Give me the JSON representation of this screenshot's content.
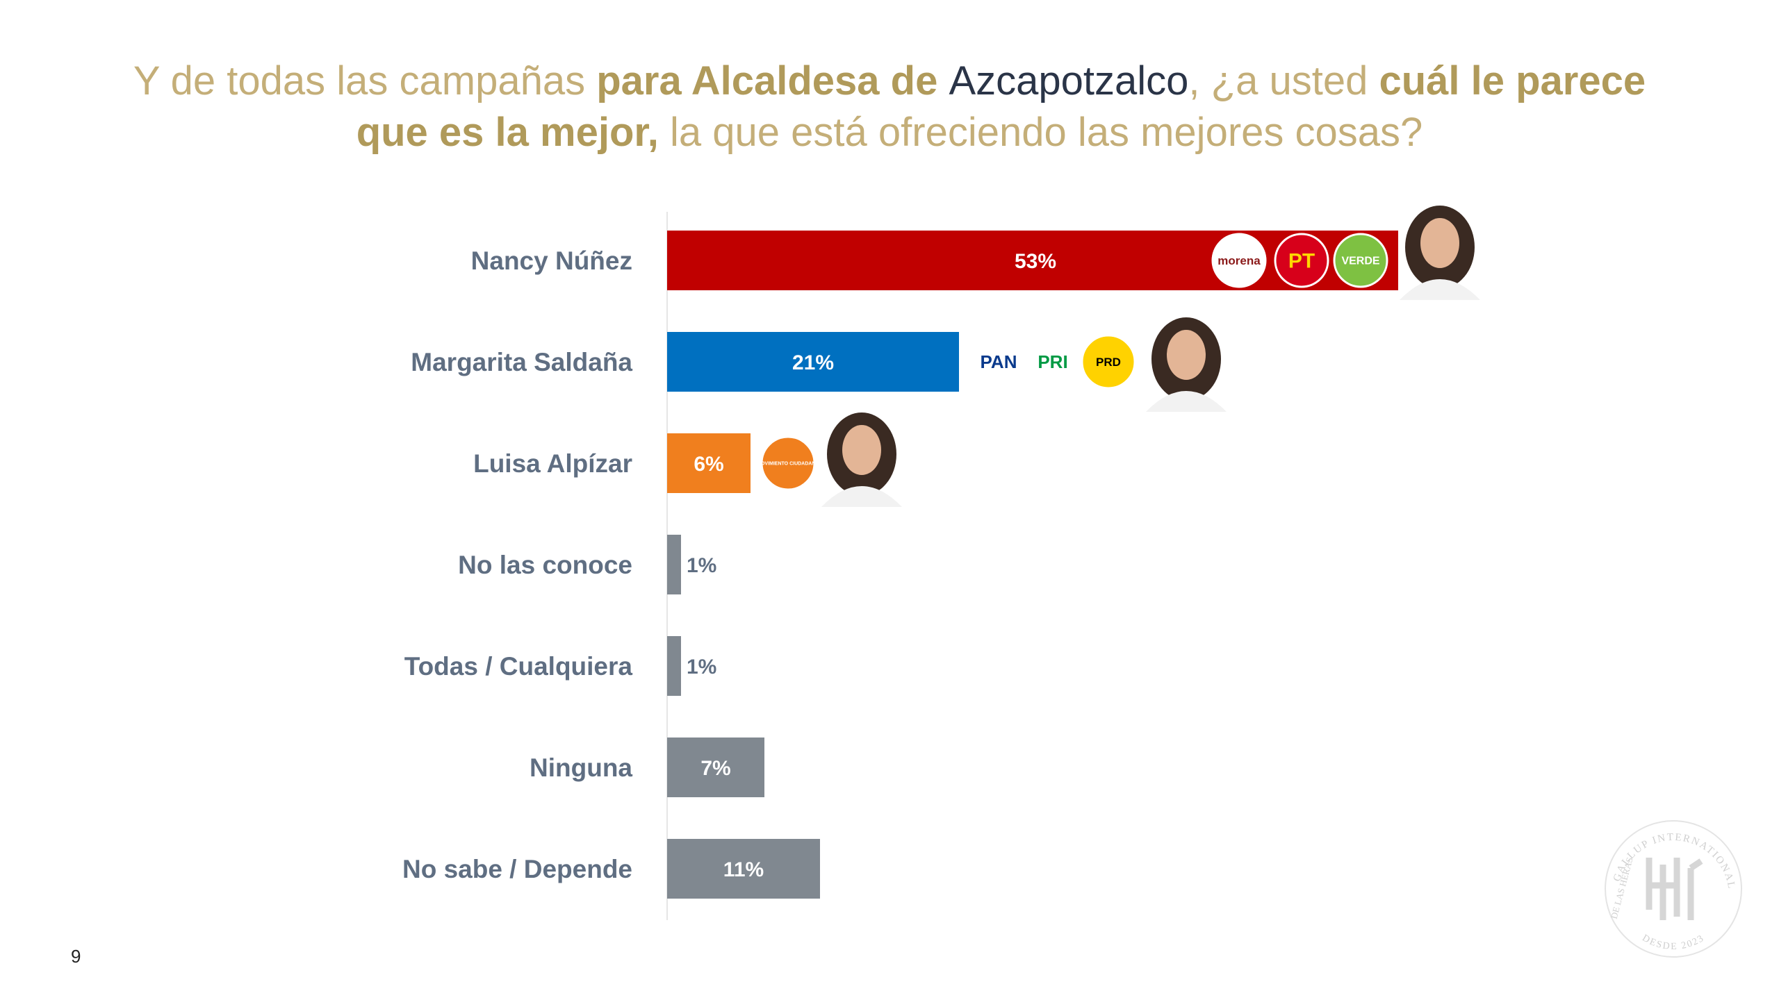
{
  "title": {
    "part1": "Y de todas las campañas ",
    "part2": "para Alcaldesa de ",
    "part3": "Azcapotzalco",
    "part4": ", ¿a usted ",
    "part5": "cuál le parece que es la mejor,",
    "part6": " la que está ofreciendo las mejores cosas?"
  },
  "page_number": "9",
  "colors": {
    "morena_red": "#c00000",
    "pan_blue": "#0070c0",
    "mc_orange": "#f07f1e",
    "gray": "#808890",
    "label": "#5f6e82",
    "title_gold": "#c4ae78"
  },
  "chart_data": {
    "type": "bar",
    "orientation": "horizontal",
    "categories": [
      "Nancy Núñez",
      "Margarita Saldaña",
      "Luisa Alpízar",
      "No las conoce",
      "Todas / Cualquiera",
      "Ninguna",
      "No sabe / Depende"
    ],
    "values": [
      53,
      21,
      6,
      1,
      1,
      7,
      11
    ],
    "value_labels": [
      "53%",
      "21%",
      "6%",
      "1%",
      "1%",
      "7%",
      "11%"
    ],
    "bar_colors": [
      "#c00000",
      "#0070c0",
      "#f07f1e",
      "#808890",
      "#808890",
      "#808890",
      "#808890"
    ],
    "party_logos": [
      [
        "morena",
        "PT",
        "VERDE"
      ],
      [
        "PAN",
        "PRI",
        "PRD"
      ],
      [
        "MOVIMIENTO CIUDADANO"
      ],
      [],
      [],
      [],
      []
    ],
    "candidate_photo": [
      true,
      true,
      true,
      false,
      false,
      false,
      false
    ],
    "xlim": [
      0,
      60
    ]
  },
  "seal": {
    "ring_text": "GALLUP INTERNATIONAL MEMBER",
    "left_text": "DE LAS HERAS",
    "bottom_text": "DESDE 2023"
  }
}
